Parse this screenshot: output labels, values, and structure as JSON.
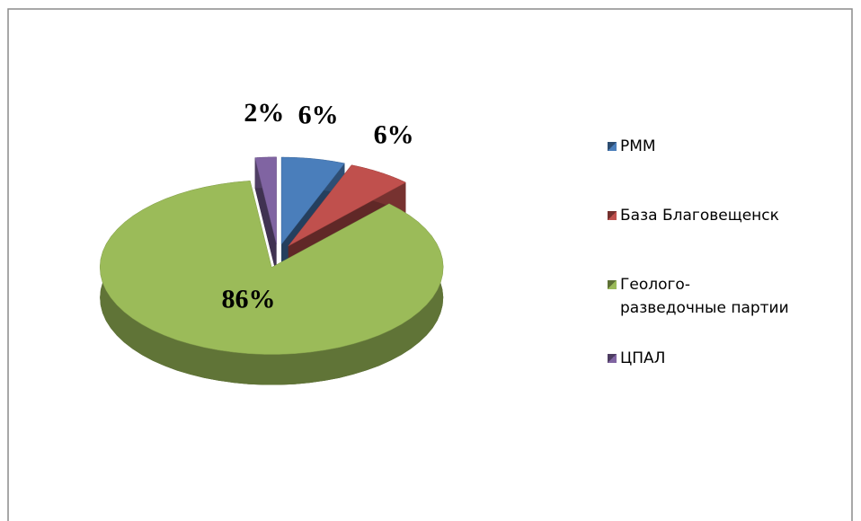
{
  "chart_data": {
    "type": "pie",
    "categories": [
      "РММ",
      "База Благовещенск",
      "Геолого-разведочные партии",
      "ЦПАЛ"
    ],
    "values": [
      6,
      6,
      86,
      2
    ],
    "value_labels": [
      "6%",
      "6%",
      "86%",
      "2%"
    ],
    "colors": [
      "#4a7ebb",
      "#c0504d",
      "#9bbb59",
      "#8064a2"
    ],
    "legend": "right"
  }
}
